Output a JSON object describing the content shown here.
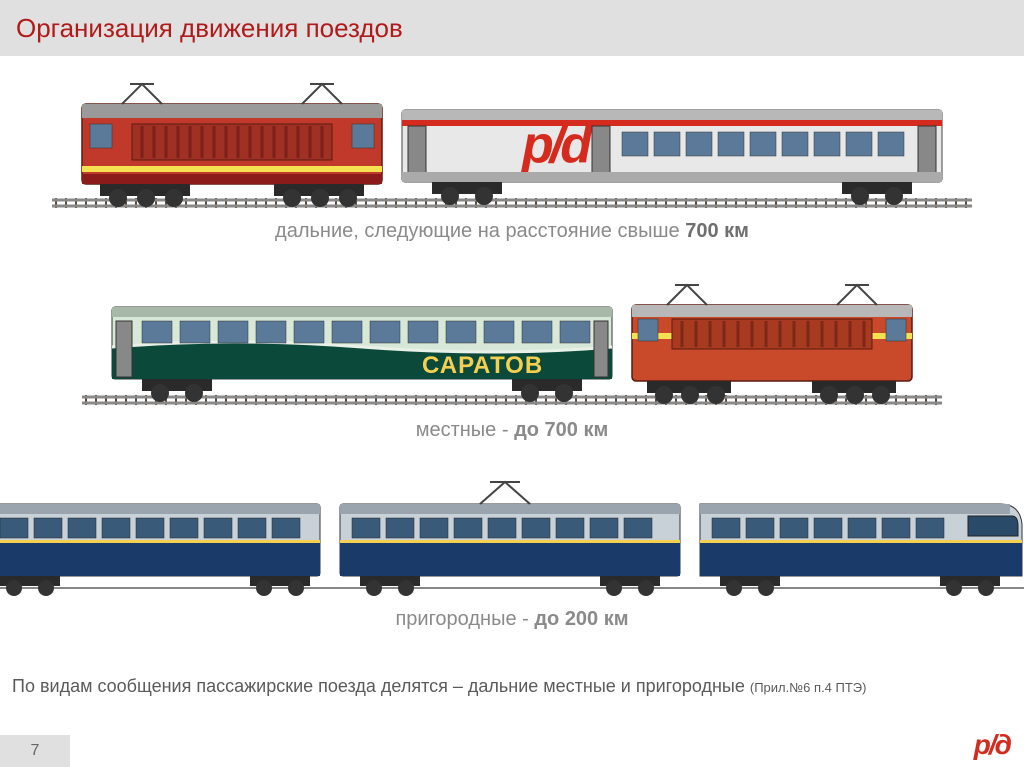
{
  "header": {
    "title": "Организация движения поездов"
  },
  "sections": {
    "long_distance": {
      "caption_prefix": "дальние, следующие на расстояние свыше ",
      "caption_bold": "700 км",
      "locomotive_color": "#c0392b",
      "locomotive_accent": "#8b1a1a",
      "locomotive_stripe": "#f5e050",
      "car_body": "#e8e8e8",
      "car_roof": "#b8b8b8",
      "car_stripe": "#d52b1e",
      "car_logo_text": "р/д",
      "car_logo_color": "#d52b1e"
    },
    "local": {
      "caption_prefix": "местные - ",
      "caption_bold": "до 700 км",
      "car_body_upper": "#d8e8d8",
      "car_body_lower": "#0b4a3a",
      "car_wave": "#e8f0e8",
      "car_label": "САРАТОВ",
      "car_label_color": "#f5d050",
      "locomotive_color": "#c94a2a",
      "locomotive_stripe": "#f5e050",
      "locomotive_roof": "#b8b8b8"
    },
    "suburban": {
      "caption_prefix": "пригородные - ",
      "caption_bold": "до 200 км",
      "car_body_upper": "#c8d0d8",
      "car_body_lower": "#1a3a6a",
      "car_roof": "#9aa4ae",
      "car_stripe": "#f5d050"
    }
  },
  "footer": {
    "text_main": "По видам сообщения пассажирские поезда делятся – дальние местные  и пригородные ",
    "text_ref": "(Прил.№6 п.4  ПТЭ)"
  },
  "page_number": "7",
  "brand_logo": "р/д"
}
